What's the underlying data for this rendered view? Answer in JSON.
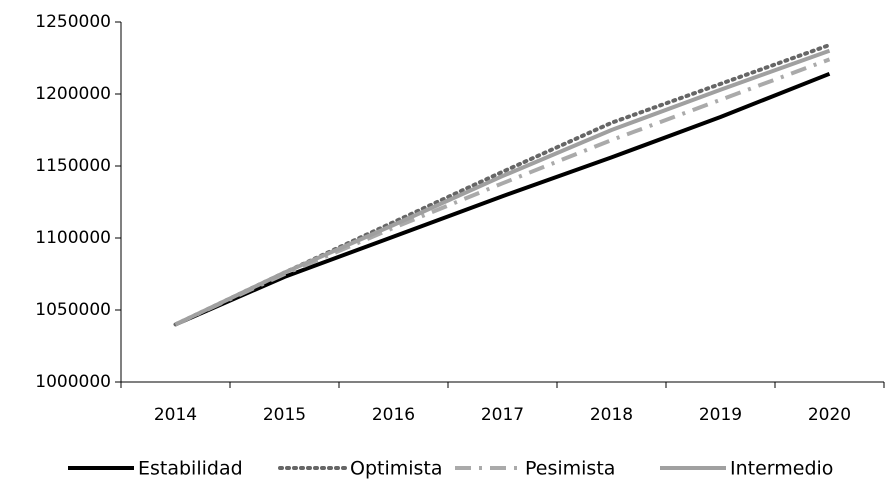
{
  "chart_data": {
    "type": "line",
    "categories": [
      "2014",
      "2015",
      "2016",
      "2017",
      "2018",
      "2019",
      "2020"
    ],
    "series": [
      {
        "name": "Estabilidad",
        "color": "#000000",
        "style": "solid",
        "values": [
          1040000,
          1073000,
          1101000,
          1129000,
          1156000,
          1184000,
          1214000
        ]
      },
      {
        "name": "Optimista",
        "color": "#666666",
        "style": "dotted",
        "values": [
          1040000,
          1076000,
          1111000,
          1146000,
          1180000,
          1207000,
          1234000
        ]
      },
      {
        "name": "Pesimista",
        "color": "#aaaaaa",
        "style": "dashdot",
        "values": [
          1040000,
          1075000,
          1107000,
          1138000,
          1168000,
          1196000,
          1224000
        ]
      },
      {
        "name": "Intermedio",
        "color": "#a0a0a0",
        "style": "solid",
        "values": [
          1040000,
          1076000,
          1109000,
          1143000,
          1175000,
          1203000,
          1230000
        ]
      }
    ],
    "ylim": [
      1000000,
      1250000
    ],
    "yticks": [
      1000000,
      1050000,
      1100000,
      1150000,
      1200000,
      1250000
    ],
    "legend": "bottom"
  }
}
